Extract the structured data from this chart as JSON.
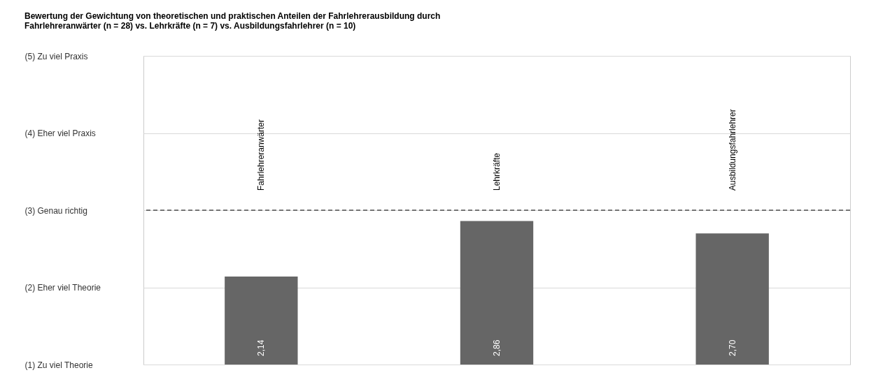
{
  "chart_data": {
    "type": "bar",
    "title": "Bewertung der Gewichtung von theoretischen und praktischen Anteilen der Fahrlehrerausbildung durch\nFahrlehreranwärter (n = 28) vs. Lehrkräfte (n = 7) vs. Ausbildungsfahrlehrer (n = 10)",
    "categories": [
      "Fahrlehreranwärter",
      "Lehrkräfte",
      "Ausbildungsfahrlehrer"
    ],
    "values": [
      2.14,
      2.86,
      2.7
    ],
    "value_labels": [
      "2,14",
      "2,86",
      "2,70"
    ],
    "color": "#666666",
    "ylim": [
      1,
      5
    ],
    "yticks": [
      {
        "value": 1,
        "label": "(1) Zu viel Theorie"
      },
      {
        "value": 2,
        "label": "(2) Eher viel Theorie"
      },
      {
        "value": 3,
        "label": "(3) Genau richtig"
      },
      {
        "value": 4,
        "label": "(4) Eher viel Praxis"
      },
      {
        "value": 5,
        "label": "(5) Zu viel Praxis"
      }
    ],
    "ref_lines": [
      {
        "axis": "y",
        "value": 3,
        "line_style": "dashed",
        "color": "#000000"
      }
    ],
    "grid": "y"
  }
}
